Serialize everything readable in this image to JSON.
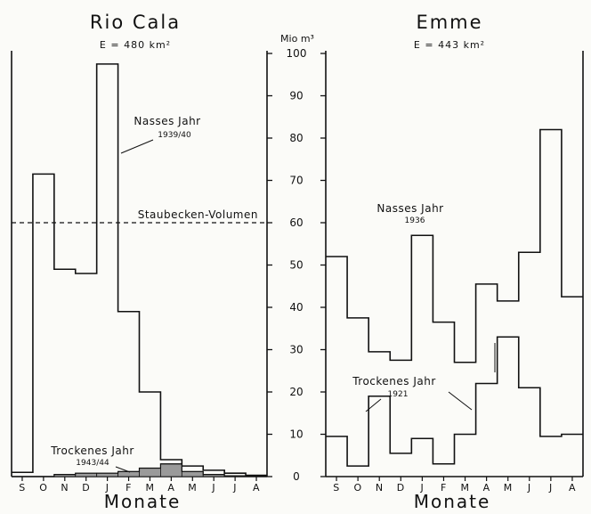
{
  "chart_data": [
    {
      "type": "line",
      "title": "Rio Cala",
      "subtitle": "E = 480 km²",
      "xlabel": "Monate",
      "categories": [
        "S",
        "O",
        "N",
        "D",
        "J",
        "F",
        "M",
        "A",
        "M",
        "J",
        "J",
        "A"
      ],
      "ylim": [
        0,
        100
      ],
      "grid": false,
      "series": [
        {
          "name": "Nasses Jahr",
          "period": "1939/40",
          "values": [
            1,
            71.5,
            49,
            48,
            97.5,
            39,
            20,
            4,
            2.5,
            1.5,
            0.8,
            0.3
          ]
        },
        {
          "name": "Trockenes Jahr",
          "period": "1943/44",
          "values": [
            0,
            0,
            0.5,
            0.8,
            0.8,
            1.2,
            2,
            3,
            1.2,
            0.5,
            0.2,
            0.1
          ]
        }
      ],
      "annotations": [
        {
          "text": "Staubecken-Volumen",
          "value": 60
        }
      ]
    },
    {
      "type": "line",
      "title": "Emme",
      "subtitle": "E = 443 km²",
      "xlabel": "Monate",
      "categories": [
        "S",
        "O",
        "N",
        "D",
        "J",
        "F",
        "M",
        "A",
        "M",
        "J",
        "J",
        "A"
      ],
      "ylim": [
        0,
        100
      ],
      "grid": false,
      "series": [
        {
          "name": "Nasses Jahr",
          "period": "1936",
          "values": [
            52,
            37.5,
            29.5,
            27.5,
            57,
            36.5,
            27,
            45.5,
            41.5,
            53,
            82,
            42.5
          ]
        },
        {
          "name": "Trockenes Jahr",
          "period": "1921",
          "values": [
            9.5,
            2.5,
            19,
            5.5,
            9,
            3,
            10,
            22,
            33,
            21,
            9.5,
            10
          ]
        }
      ]
    }
  ],
  "axis": {
    "unit": "Mio m³",
    "ticks": [
      0,
      10,
      20,
      30,
      40,
      50,
      60,
      70,
      80,
      90,
      100
    ]
  }
}
